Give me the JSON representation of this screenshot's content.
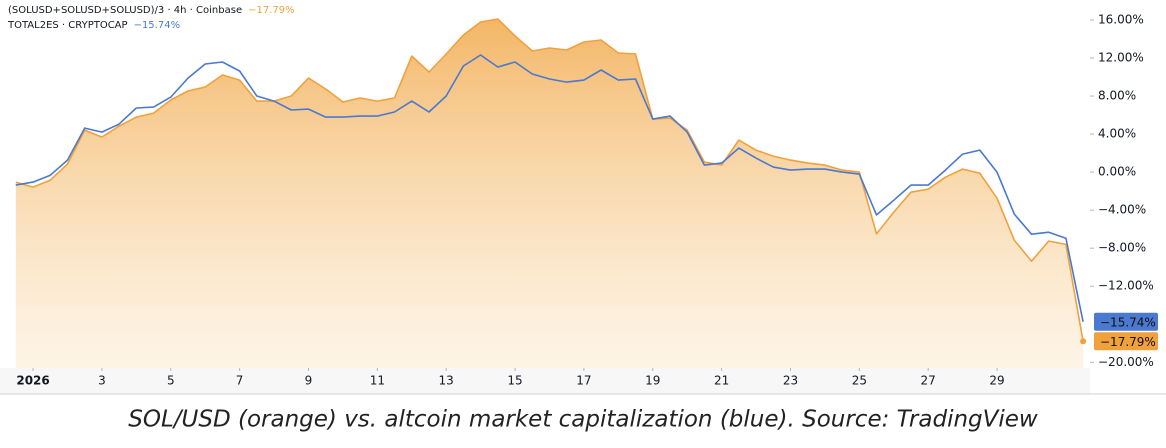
{
  "chart_data": {
    "type": "line",
    "caption": "SOL/USD (orange) vs. altcoin market capitalization (blue). Source: TradingView",
    "x": [
      0.5,
      1,
      1.5,
      2,
      2.5,
      3,
      3.5,
      4,
      4.5,
      5,
      5.5,
      6,
      6.5,
      7,
      7.5,
      8,
      8.5,
      9,
      9.5,
      10,
      10.5,
      11,
      11.5,
      12,
      12.5,
      13,
      13.5,
      14,
      14.5,
      15,
      15.5,
      16,
      16.5,
      17,
      17.5,
      18,
      18.5,
      19,
      19.5,
      20,
      20.5,
      21,
      21.5,
      22,
      22.5,
      23,
      23.5,
      24,
      24.5,
      25,
      25.5,
      26,
      26.5,
      27,
      27.5,
      28,
      28.5,
      29,
      29.5,
      30,
      30.5,
      31,
      31.5
    ],
    "series": [
      {
        "name": "(SOLUSD+SOLUSD+SOLUSD)/3 · 4h · Coinbase",
        "color": "#f0a13c",
        "area": true,
        "values": [
          -1.05,
          -1.58,
          -0.84,
          0.84,
          4.42,
          3.68,
          4.84,
          5.79,
          6.21,
          7.58,
          8.53,
          8.95,
          10.21,
          9.68,
          7.47,
          7.47,
          8.0,
          9.89,
          8.74,
          7.37,
          7.79,
          7.47,
          7.79,
          12.2,
          10.53,
          12.42,
          14.42,
          15.79,
          16.1,
          14.32,
          12.74,
          13.05,
          12.84,
          13.68,
          13.89,
          12.53,
          12.42,
          5.58,
          5.68,
          4.42,
          1.05,
          0.74,
          3.37,
          2.32,
          1.68,
          1.26,
          0.95,
          0.74,
          0.21,
          0,
          -6.5,
          -4.21,
          -2.11,
          -1.79,
          -0.53,
          0.32,
          -0.11,
          -2.74,
          -7.16,
          -9.37,
          -7.26,
          -7.6,
          -17.79
        ],
        "value_labels": [
          null,
          null,
          null,
          null,
          null,
          null,
          null,
          null,
          null,
          null,
          null,
          null,
          null,
          null,
          null,
          null,
          null,
          null,
          null,
          null,
          null,
          null,
          null,
          null,
          null,
          null,
          null,
          null,
          null,
          null,
          null,
          null,
          null,
          null,
          null,
          null,
          null,
          null,
          null,
          null,
          null,
          null,
          null,
          null,
          null,
          null,
          null,
          null,
          null,
          null,
          null,
          null,
          null,
          null,
          null,
          null,
          null,
          null,
          null,
          null,
          null,
          null,
          "−17.79%"
        ]
      },
      {
        "name": "TOTAL2ES · CRYPTOCAP",
        "color": "#4a79d0",
        "values": [
          -1.37,
          -1.05,
          -0.32,
          1.26,
          4.63,
          4.21,
          5.05,
          6.74,
          6.84,
          7.89,
          9.89,
          11.37,
          11.58,
          10.63,
          8.0,
          7.47,
          6.53,
          6.63,
          5.79,
          5.79,
          5.89,
          5.89,
          6.32,
          7.47,
          6.32,
          8.0,
          11.16,
          12.32,
          11.05,
          11.58,
          10.32,
          9.79,
          9.47,
          9.68,
          10.74,
          9.68,
          9.79,
          5.58,
          5.89,
          4.21,
          0.74,
          0.95,
          2.53,
          1.47,
          0.53,
          0.21,
          0.32,
          0.32,
          0,
          -0.21,
          -4.5,
          -2.95,
          -1.37,
          -1.37,
          0.21,
          1.89,
          2.32,
          0,
          -4.42,
          -6.53,
          -6.32,
          -6.95,
          -15.74
        ],
        "value_labels": [
          null,
          null,
          null,
          null,
          null,
          null,
          null,
          null,
          null,
          null,
          null,
          null,
          null,
          null,
          null,
          null,
          null,
          null,
          null,
          null,
          null,
          null,
          null,
          null,
          null,
          null,
          null,
          null,
          null,
          null,
          null,
          null,
          null,
          null,
          null,
          null,
          null,
          null,
          null,
          null,
          null,
          null,
          null,
          null,
          null,
          null,
          null,
          null,
          null,
          null,
          null,
          null,
          null,
          null,
          null,
          null,
          null,
          null,
          null,
          null,
          null,
          null,
          "−15.74%"
        ]
      }
    ],
    "xlim": [
      0.04,
      31.7
    ],
    "xticks": [
      {
        "value": 1,
        "label": "2026"
      },
      3,
      5,
      7,
      9,
      11,
      13,
      15,
      17,
      19,
      21,
      23,
      25,
      27,
      29
    ],
    "ylim": [
      -20.6,
      18.1
    ],
    "yticks": [
      {
        "value": 16,
        "label": "16.00%"
      },
      {
        "value": 12,
        "label": "12.00%"
      },
      {
        "value": 8,
        "label": "8.00%"
      },
      {
        "value": 4,
        "label": "4.00%"
      },
      {
        "value": 0,
        "label": "0.00%"
      },
      {
        "value": -4,
        "label": "−4.00%"
      },
      {
        "value": -8,
        "label": "−8.00%"
      },
      {
        "value": -12,
        "label": "−12.00%"
      },
      {
        "value": -20,
        "label": "−20.00%"
      }
    ],
    "grid": false
  }
}
